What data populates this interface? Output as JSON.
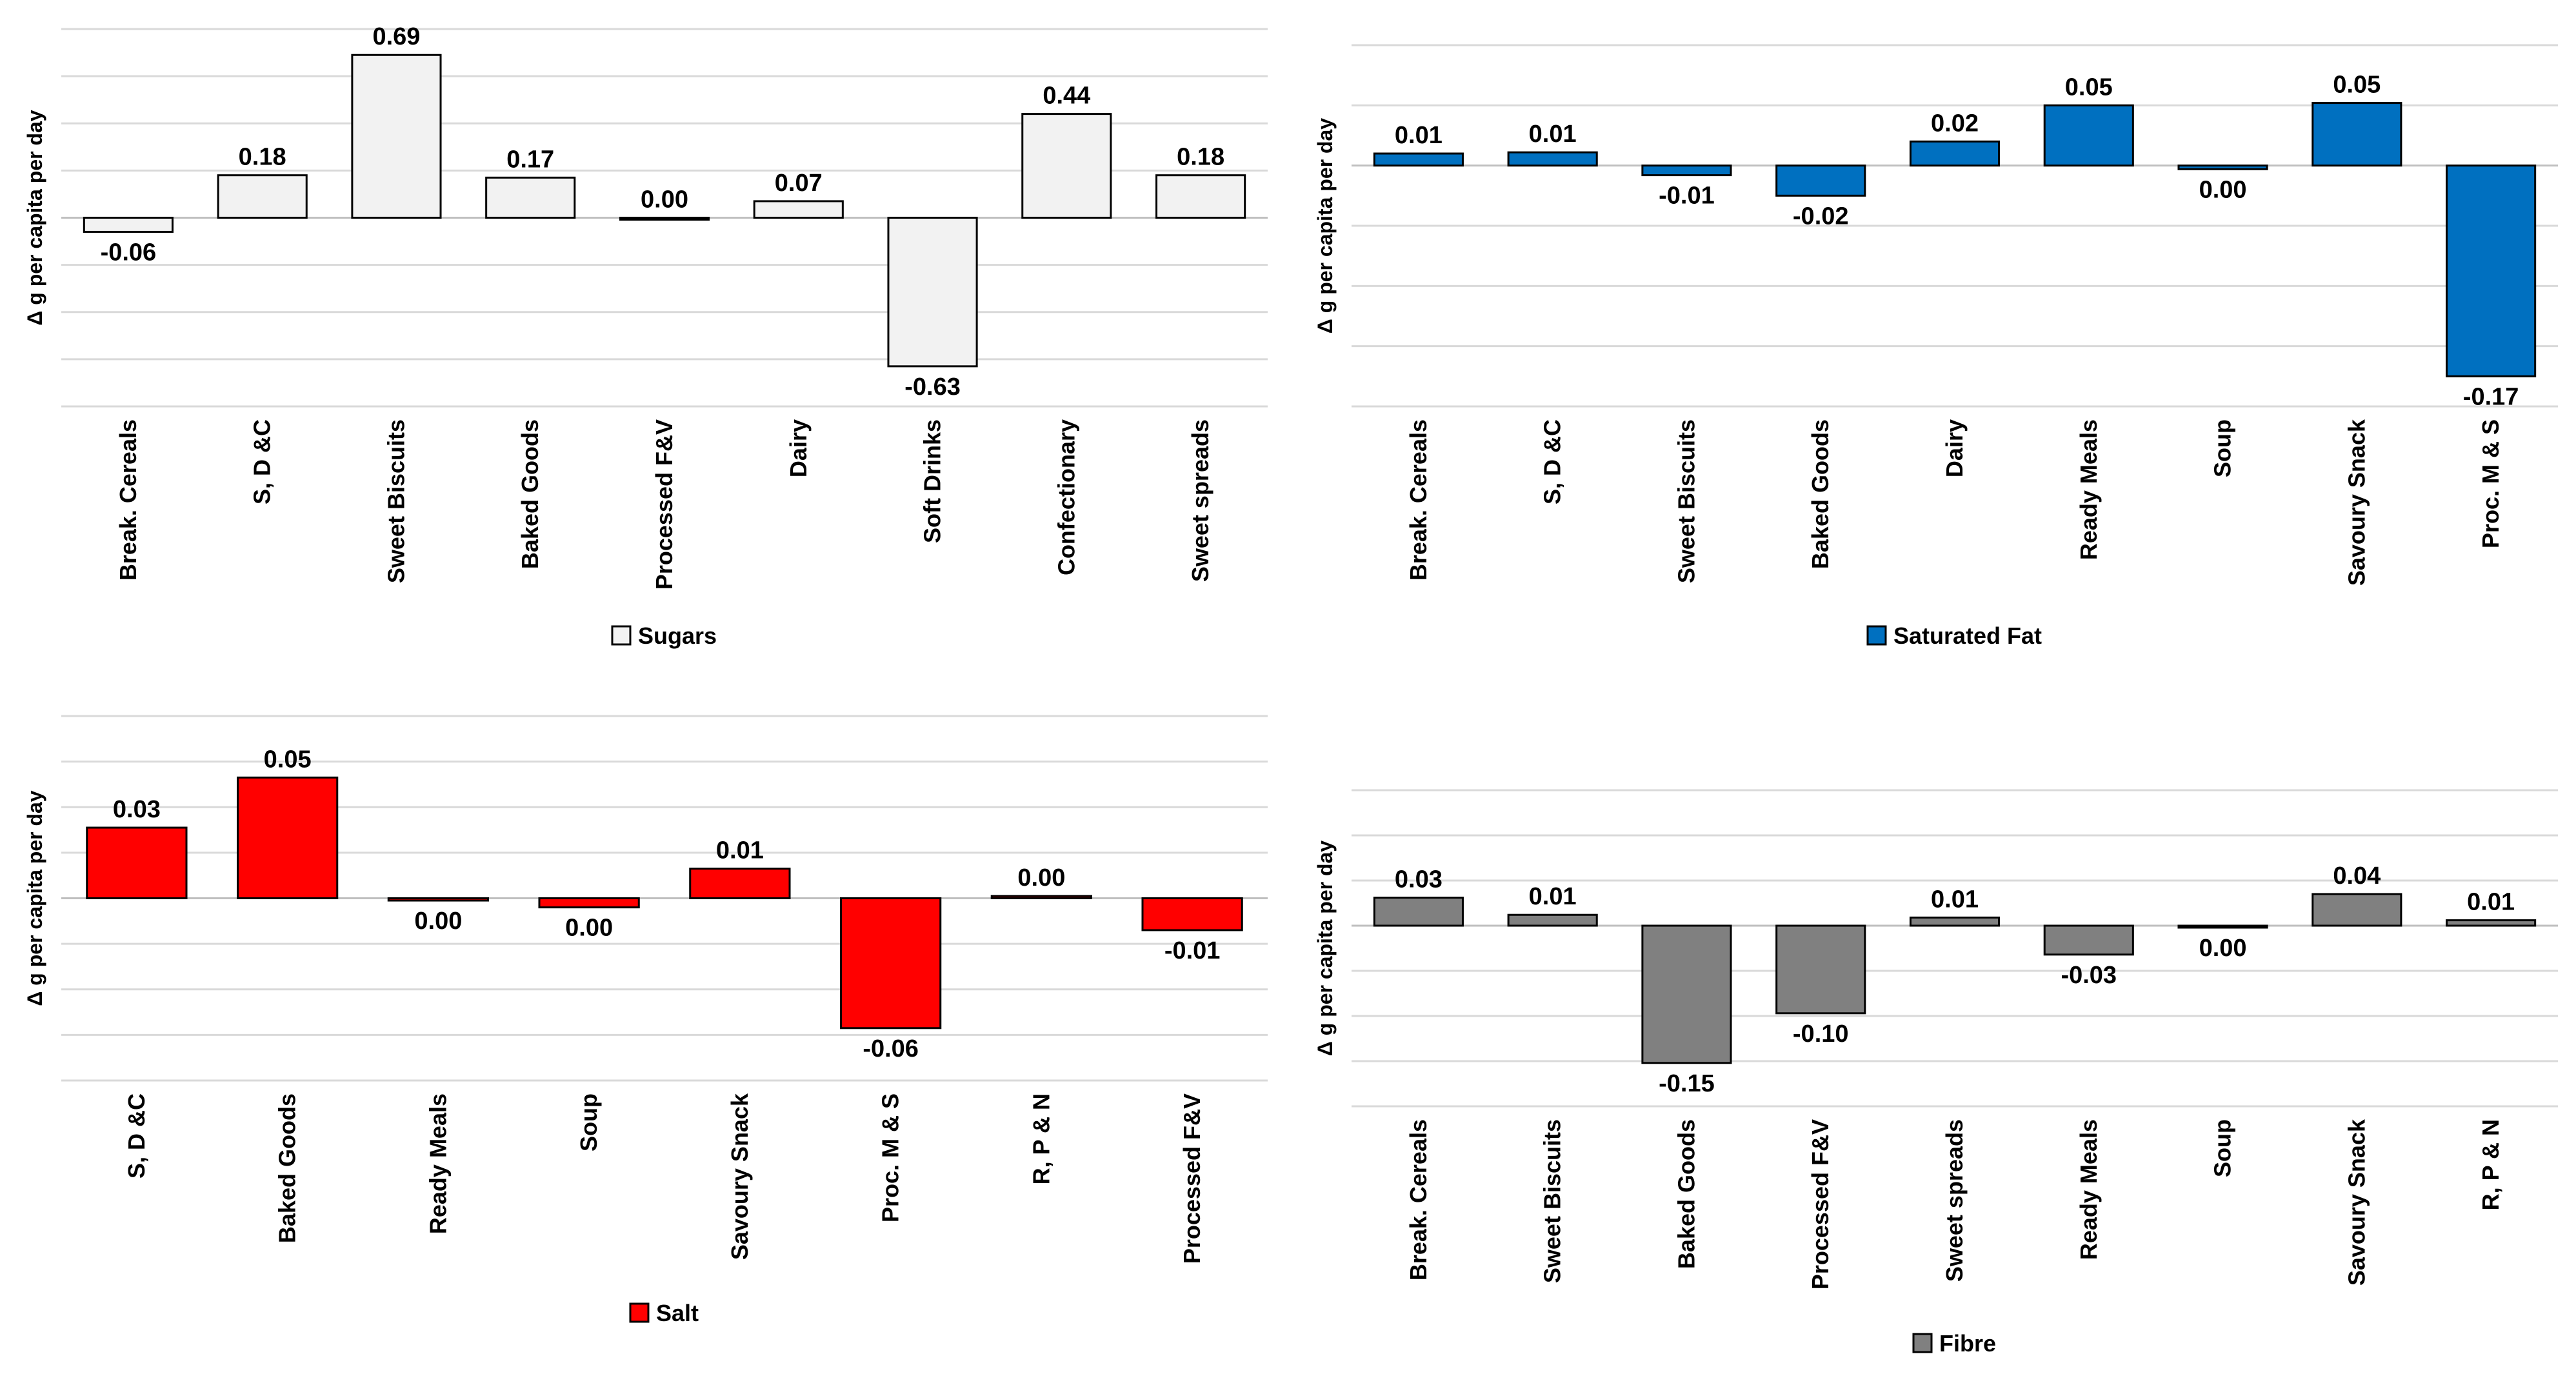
{
  "chart_data": [
    {
      "type": "bar",
      "title": "",
      "ylabel": "Δ g per capita per day",
      "series_name": "Sugars",
      "color": "#f2f2f2",
      "ylim": [
        -0.8,
        0.8
      ],
      "gridlines": [
        -0.8,
        -0.6,
        -0.4,
        -0.2,
        0,
        0.2,
        0.4,
        0.6,
        0.8
      ],
      "categories": [
        "Break. Cereals",
        "S, D &C",
        "Sweet Biscuits",
        "Baked Goods",
        "Processed F&V",
        "Dairy",
        "Soft Drinks",
        "Confectionary",
        "Sweet spreads"
      ],
      "values": [
        -0.06,
        0.18,
        0.69,
        0.17,
        0.0,
        0.07,
        -0.63,
        0.44,
        0.18
      ],
      "labels": [
        "-0.06",
        "0.18",
        "0.69",
        "0.17",
        "0.00",
        "0.07",
        "-0.63",
        "0.44",
        "0.18"
      ]
    },
    {
      "type": "bar",
      "title": "",
      "ylabel": "Δ g per capita per day",
      "series_name": "Saturated Fat",
      "color": "#0070c0",
      "ylim": [
        -0.2,
        0.1
      ],
      "gridlines": [
        -0.2,
        -0.15,
        -0.1,
        -0.05,
        0,
        0.05,
        0.1
      ],
      "categories": [
        "Break. Cereals",
        "S, D &C",
        "Sweet Biscuits",
        "Baked Goods",
        "Dairy",
        "Ready Meals",
        "Soup",
        "Savoury Snack",
        "Proc. M & S"
      ],
      "values": [
        0.01,
        0.011,
        -0.008,
        -0.025,
        0.02,
        0.05,
        -0.003,
        0.052,
        -0.175
      ],
      "labels": [
        "0.01",
        "0.01",
        "-0.01",
        "-0.02",
        "0.02",
        "0.05",
        "0.00",
        "0.05",
        "-0.17"
      ]
    },
    {
      "type": "bar",
      "title": "",
      "ylabel": "Δ g per capita per day",
      "series_name": "Salt",
      "color": "#ff0000",
      "ylim": [
        -0.08,
        0.08
      ],
      "gridlines": [
        -0.08,
        -0.06,
        -0.04,
        -0.02,
        0,
        0.02,
        0.04,
        0.06,
        0.08
      ],
      "categories": [
        "S, D &C",
        "Baked Goods",
        "Ready Meals",
        "Soup",
        "Savoury Snack",
        "Proc. M & S",
        "R, P & N",
        "Processed F&V"
      ],
      "values": [
        0.031,
        0.053,
        -0.001,
        -0.004,
        0.013,
        -0.057,
        0.001,
        -0.014
      ],
      "labels": [
        "0.03",
        "0.05",
        "0.00",
        "0.00",
        "0.01",
        "-0.06",
        "0.00",
        "-0.01"
      ]
    },
    {
      "type": "bar",
      "title": "",
      "ylabel": "Δ g per capita per day",
      "series_name": "Fibre",
      "color": "#808080",
      "ylim": [
        -0.2,
        0.15
      ],
      "gridlines": [
        -0.2,
        -0.15,
        -0.1,
        -0.05,
        0,
        0.05,
        0.1,
        0.15
      ],
      "categories": [
        "Break. Cereals",
        "Sweet Biscuits",
        "Baked Goods",
        "Processed F&V",
        "Sweet spreads",
        "Ready Meals",
        "Soup",
        "Savoury Snack",
        "R, P & N"
      ],
      "values": [
        0.031,
        0.012,
        -0.152,
        -0.097,
        0.009,
        -0.032,
        -0.002,
        0.035,
        0.006
      ],
      "labels": [
        "0.03",
        "0.01",
        "-0.15",
        "-0.10",
        "0.01",
        "-0.03",
        "0.00",
        "0.04",
        "0.01"
      ]
    }
  ]
}
